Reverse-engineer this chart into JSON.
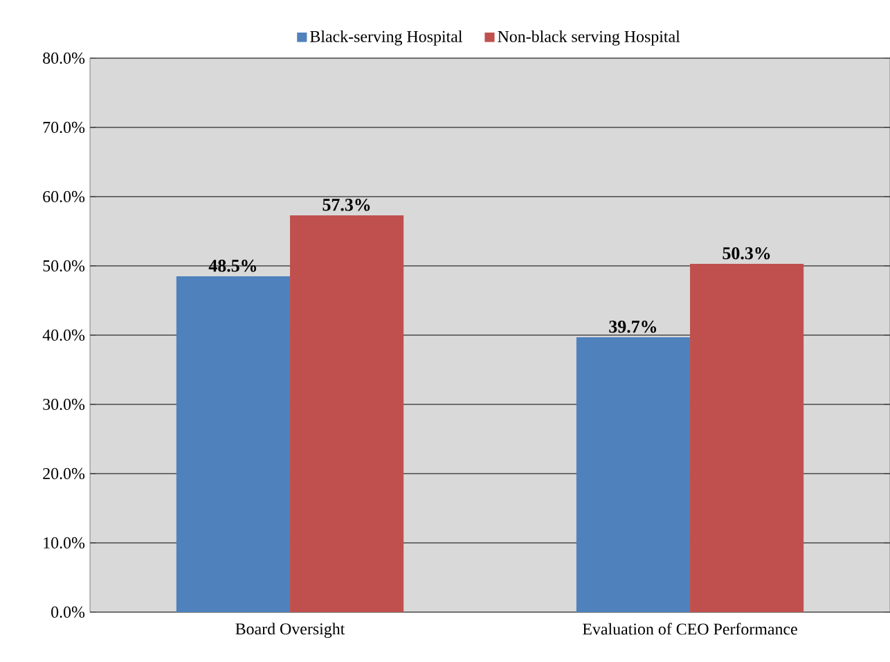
{
  "chart_data": {
    "type": "bar",
    "categories": [
      "Board Oversight",
      "Evaluation of CEO Performance"
    ],
    "series": [
      {
        "name": "Black-serving Hospital",
        "color": "#4f81bd",
        "values": [
          48.5,
          39.7
        ],
        "value_labels": [
          "48.5%",
          "39.7%"
        ]
      },
      {
        "name": "Non-black serving Hospital",
        "color": "#c0504d",
        "values": [
          57.3,
          50.3
        ],
        "value_labels": [
          "57.3%",
          "50.3%"
        ]
      }
    ],
    "ylim": [
      0,
      80
    ],
    "yticks": [
      {
        "value": 0,
        "label": "0.0%"
      },
      {
        "value": 10,
        "label": "10.0%"
      },
      {
        "value": 20,
        "label": "20.0%"
      },
      {
        "value": 30,
        "label": "30.0%"
      },
      {
        "value": 40,
        "label": "40.0%"
      },
      {
        "value": 50,
        "label": "50.0%"
      },
      {
        "value": 60,
        "label": "60.0%"
      },
      {
        "value": 70,
        "label": "70.0%"
      },
      {
        "value": 80,
        "label": "80.0%"
      }
    ],
    "grid": "y",
    "legend": "top"
  }
}
